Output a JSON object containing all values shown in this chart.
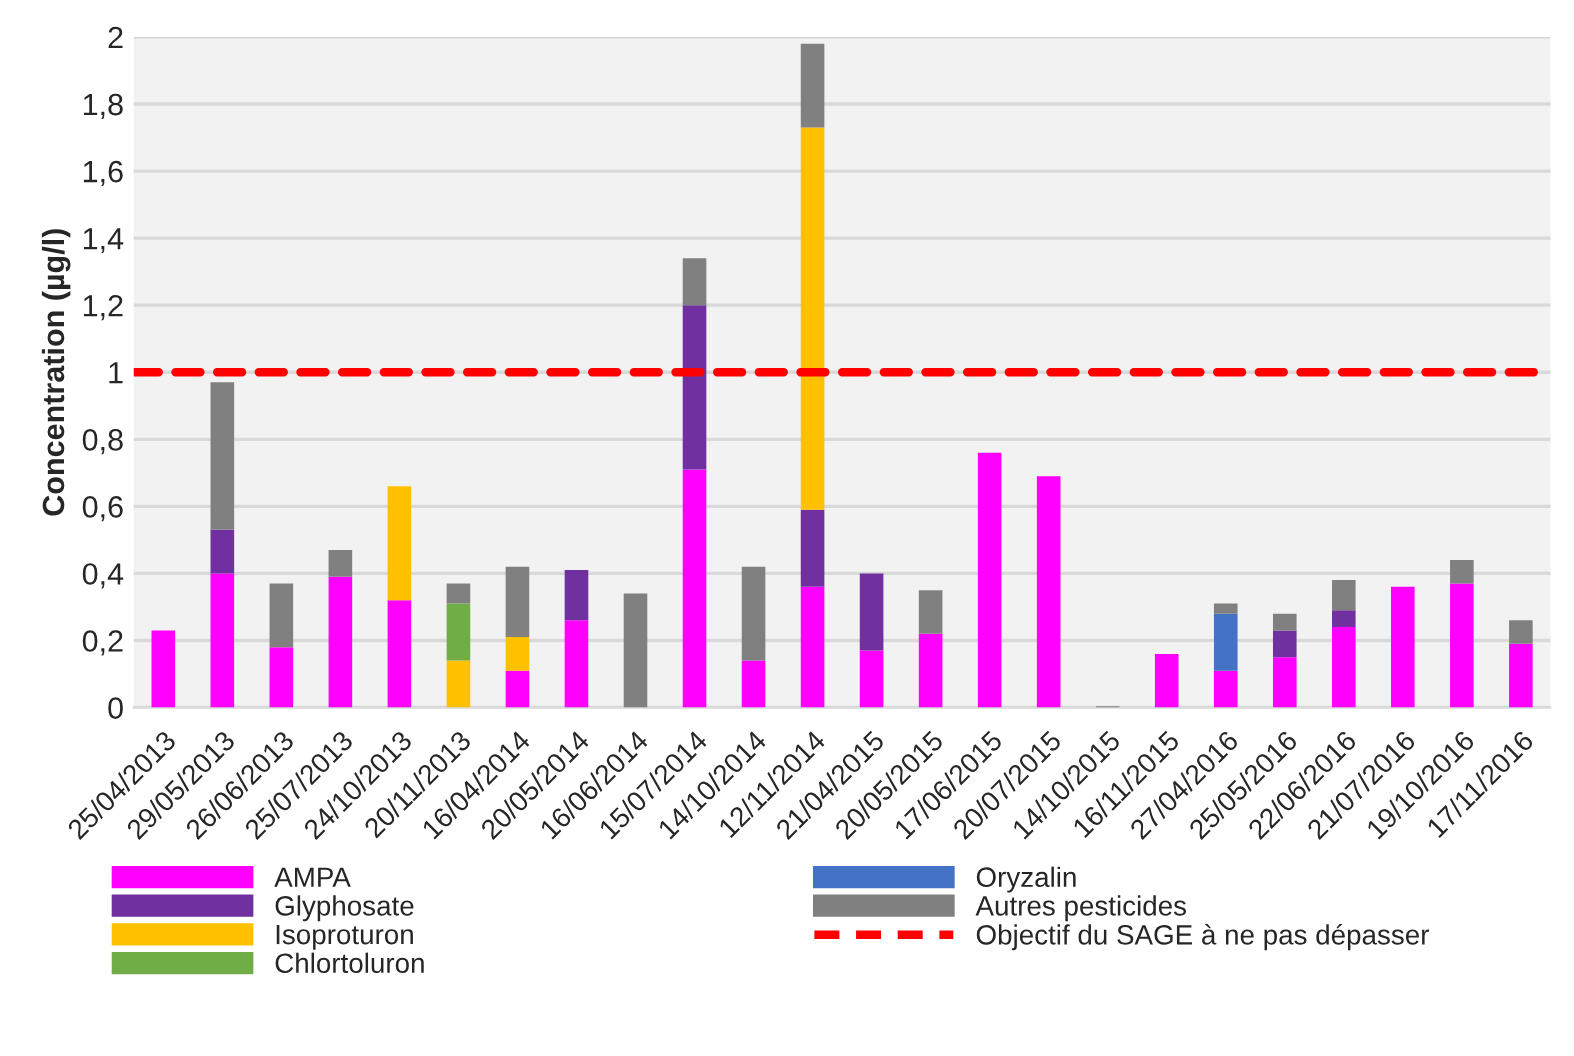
{
  "chart_data": {
    "type": "bar",
    "stacked": true,
    "ylabel": "Concentration (µg/l)",
    "categories": [
      "25/04/2013",
      "29/05/2013",
      "26/06/2013",
      "25/07/2013",
      "24/10/2013",
      "20/11/2013",
      "16/04/2014",
      "20/05/2014",
      "16/06/2014",
      "15/07/2014",
      "14/10/2014",
      "12/11/2014",
      "21/04/2015",
      "20/05/2015",
      "17/06/2015",
      "20/07/2015",
      "14/10/2015",
      "16/11/2015",
      "27/04/2016",
      "25/05/2016",
      "22/06/2016",
      "21/07/2016",
      "19/10/2016",
      "17/11/2016"
    ],
    "series": [
      {
        "name": "AMPA",
        "color": "#ff00ff",
        "values": [
          0.23,
          0.4,
          0.18,
          0.39,
          0.32,
          null,
          0.11,
          0.26,
          null,
          0.71,
          0.14,
          0.36,
          0.17,
          0.22,
          0.76,
          0.69,
          null,
          0.16,
          0.11,
          0.15,
          0.24,
          0.36,
          0.37,
          0.19
        ]
      },
      {
        "name": "Glyphosate",
        "color": "#7030a0",
        "values": [
          null,
          0.13,
          null,
          null,
          null,
          null,
          null,
          0.15,
          null,
          0.49,
          null,
          0.23,
          0.23,
          null,
          null,
          null,
          null,
          null,
          null,
          0.08,
          0.05,
          null,
          null,
          null
        ]
      },
      {
        "name": "Isoproturon",
        "color": "#ffc000",
        "values": [
          null,
          null,
          null,
          null,
          0.34,
          0.14,
          0.1,
          null,
          null,
          null,
          null,
          1.14,
          null,
          null,
          null,
          null,
          null,
          null,
          null,
          null,
          null,
          null,
          null,
          null
        ]
      },
      {
        "name": "Chlortoluron",
        "color": "#70ad47",
        "values": [
          null,
          null,
          null,
          null,
          null,
          0.17,
          null,
          null,
          null,
          null,
          null,
          null,
          null,
          null,
          null,
          null,
          null,
          null,
          null,
          null,
          null,
          null,
          null,
          null
        ]
      },
      {
        "name": "Oryzalin",
        "color": "#4472c4",
        "values": [
          null,
          null,
          null,
          null,
          null,
          null,
          null,
          null,
          null,
          null,
          null,
          null,
          null,
          null,
          null,
          null,
          null,
          null,
          0.17,
          null,
          null,
          null,
          null,
          null
        ]
      },
      {
        "name": "Autres pesticides",
        "color": "#808080",
        "values": [
          null,
          0.44,
          0.19,
          0.08,
          null,
          0.06,
          0.21,
          null,
          0.34,
          0.14,
          0.28,
          0.25,
          null,
          0.13,
          null,
          null,
          0.004,
          null,
          0.03,
          0.05,
          0.09,
          null,
          0.07,
          0.07
        ]
      }
    ],
    "ylim": [
      0,
      2
    ],
    "yticks": [
      0,
      {
        "value": 0.2,
        "label": "0,2"
      },
      {
        "value": 0.4,
        "label": "0,4"
      },
      {
        "value": 0.6,
        "label": "0,6"
      },
      {
        "value": 0.8,
        "label": "0,8"
      },
      1,
      {
        "value": 1.2,
        "label": "1,2"
      },
      {
        "value": 1.4,
        "label": "1,4"
      },
      {
        "value": 1.6,
        "label": "1,6"
      },
      {
        "value": 1.8,
        "label": "1,8"
      },
      2
    ],
    "ref_lines": [
      {
        "axis": "y",
        "value": 1,
        "label": "Objectif du SAGE à ne pas dépasser",
        "color": "#ff0000",
        "line_style": "dashed"
      }
    ],
    "grid": "y",
    "legend": "bottom"
  }
}
